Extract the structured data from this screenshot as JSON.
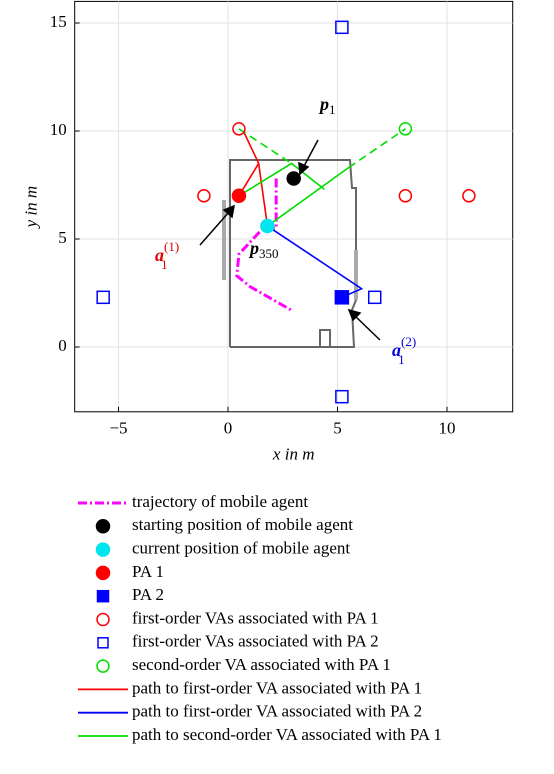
{
  "chart_data": {
    "type": "scatter",
    "xlabel": "x in m",
    "ylabel": "y in m",
    "xlim": [
      -7,
      13
    ],
    "ylim": [
      -3,
      16
    ],
    "xticks": [
      {
        "value": -5,
        "label": "−5"
      },
      0,
      5,
      10
    ],
    "yticks": [
      0,
      5,
      10,
      15
    ],
    "grid": true,
    "annotations": [
      {
        "text": "p",
        "sub": "1",
        "color": "#000000"
      },
      {
        "text": "p",
        "sub": "350",
        "color": "#000000"
      },
      {
        "text": "a",
        "sub": "1",
        "sup": "(1)",
        "color": "#e00000"
      },
      {
        "text": "a",
        "sub": "1",
        "sup": "(2)",
        "color": "#0000e0"
      }
    ],
    "series": [
      {
        "name": "trajectory of mobile agent",
        "color": "#ff00ff",
        "line": "dashdot",
        "x": [
          2.2,
          2.2,
          1.6,
          0.5,
          0.4,
          1.0,
          2.9
        ],
        "y": [
          7.8,
          5.5,
          5.5,
          4.3,
          3.3,
          2.8,
          1.7
        ]
      },
      {
        "name": "starting position of mobile agent",
        "color": "#000000",
        "marker": "circle",
        "filled": true,
        "x": [
          3.0
        ],
        "y": [
          7.8
        ]
      },
      {
        "name": "current position of mobile agent",
        "color": "#00e5ee",
        "marker": "circle",
        "filled": true,
        "x": [
          1.8
        ],
        "y": [
          5.6
        ]
      },
      {
        "name": "PA 1",
        "color": "#ff0000",
        "marker": "circle",
        "filled": true,
        "x": [
          0.5
        ],
        "y": [
          7.0
        ]
      },
      {
        "name": "PA 2",
        "color": "#0000ff",
        "marker": "square",
        "filled": true,
        "x": [
          5.2
        ],
        "y": [
          2.3
        ]
      },
      {
        "name": "first-order VAs associated with PA 1",
        "color": "#ff0000",
        "marker": "circle",
        "filled": false,
        "x": [
          0.5,
          -1.1,
          8.1,
          11.0
        ],
        "y": [
          10.1,
          7.0,
          7.0,
          7.0
        ]
      },
      {
        "name": "first-order VAs associated with PA 2",
        "color": "#0000ff",
        "marker": "square",
        "filled": false,
        "x": [
          5.2,
          -5.7,
          6.7,
          5.2
        ],
        "y": [
          14.8,
          2.3,
          2.3,
          -2.3
        ]
      },
      {
        "name": "second-order VA associated with PA 1",
        "color": "#00dd00",
        "marker": "circle",
        "filled": false,
        "x": [
          8.1
        ],
        "y": [
          10.1
        ]
      },
      {
        "name": "path to first-order VA associated with PA 1",
        "color": "#ff0000",
        "line": "solid",
        "x": [
          0.7,
          1.4,
          1.8,
          null,
          0.5,
          1.4
        ],
        "y": [
          10.0,
          8.5,
          5.6,
          null,
          7.0,
          8.5
        ]
      },
      {
        "name": "path to first-order VA associated with PA 2",
        "color": "#0000ff",
        "line": "solid",
        "x": [
          1.8,
          6.1,
          5.2
        ],
        "y": [
          5.6,
          2.7,
          2.3
        ]
      },
      {
        "name": "path to second-order VA associated with PA 1",
        "color": "#00dd00",
        "line": "solid",
        "x": [
          0.5,
          2.9,
          4.4,
          null,
          1.8,
          5.5,
          null,
          0.5,
          2.9,
          null,
          5.5,
          8.1
        ],
        "y": [
          7.0,
          8.5,
          7.3,
          null,
          5.6,
          8.3,
          null,
          10.1,
          8.5,
          null,
          8.3,
          10.1
        ],
        "dashed_pieces": [
          false,
          false,
          true,
          true
        ]
      }
    ]
  }
}
